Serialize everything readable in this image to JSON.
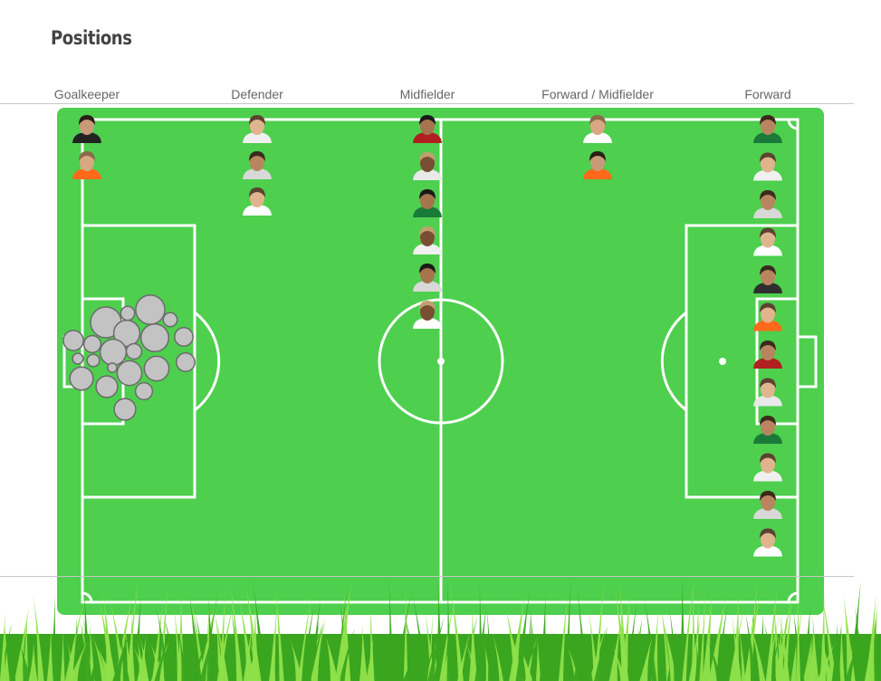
{
  "page": {
    "title": "Positions"
  },
  "colors": {
    "pitch": "#4ecf4e",
    "lines": "#ffffff",
    "bubble_fill": "#c3c3c3",
    "bubble_stroke": "#6b6b6b",
    "grass_light": "#8fe04a",
    "grass_dark": "#3aa51f"
  },
  "chart_data": {
    "type": "scatter",
    "title": "Positions",
    "categories": [
      "Goalkeeper",
      "Defender",
      "Midfielder",
      "Forward / Midfielder",
      "Forward"
    ],
    "series": [
      {
        "category": "Goalkeeper",
        "count": 2
      },
      {
        "category": "Defender",
        "count": 3
      },
      {
        "category": "Midfielder",
        "count": 6
      },
      {
        "category": "Forward / Midfielder",
        "count": 2
      },
      {
        "category": "Forward",
        "count": 12
      }
    ],
    "bubble_cluster": {
      "count": 21,
      "relative_sizes": [
        1.0,
        0.95,
        0.9,
        0.85,
        0.85,
        0.8,
        0.8,
        0.75,
        0.7,
        0.7,
        0.65,
        0.6,
        0.6,
        0.55,
        0.55,
        0.5,
        0.45,
        0.45,
        0.4,
        0.35,
        0.3
      ]
    },
    "background": "soccer-pitch",
    "grid": false,
    "legend": "none"
  }
}
